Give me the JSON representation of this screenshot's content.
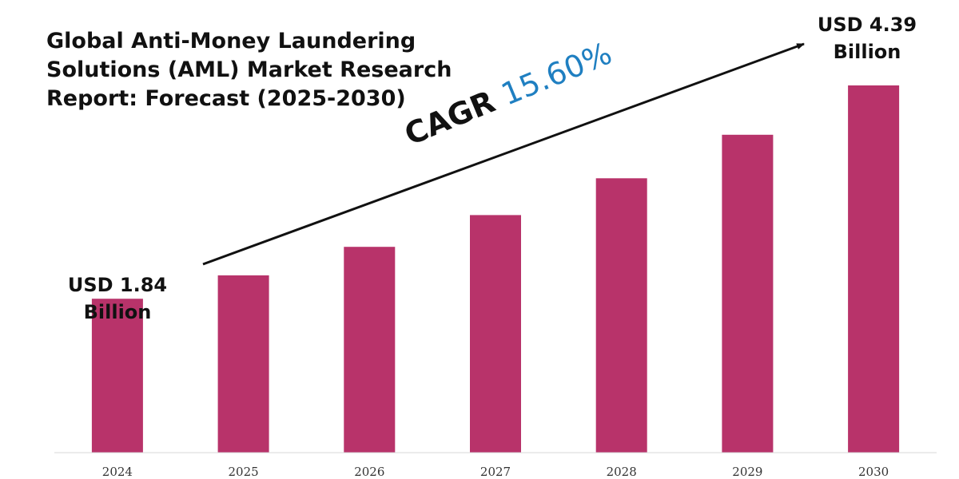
{
  "title_lines": [
    "Global Anti-Money Laundering",
    "Solutions (AML) Market Research",
    "Report: Forecast (2025-2030)"
  ],
  "cagr": {
    "prefix": "CAGR",
    "rate": "15.60%"
  },
  "start_label": {
    "line1": "USD 1.84",
    "line2": "Billion"
  },
  "end_label": {
    "line1": "USD 4.39",
    "line2": "Billion"
  },
  "colors": {
    "bar": "#b8336a",
    "rate": "#1f7fc1",
    "text": "#111111"
  },
  "chart_data": {
    "type": "bar",
    "title": "Global Anti-Money Laundering Solutions (AML) Market Research Report: Forecast (2025-2030)",
    "categories": [
      "2024",
      "2025",
      "2026",
      "2027",
      "2028",
      "2029",
      "2030"
    ],
    "values": [
      1.84,
      2.12,
      2.46,
      2.84,
      3.28,
      3.8,
      4.39
    ],
    "unit": "USD Billion",
    "ylim": [
      0,
      5.2
    ],
    "grid": false,
    "legend": "none",
    "annotation": "CAGR 15.60%"
  }
}
